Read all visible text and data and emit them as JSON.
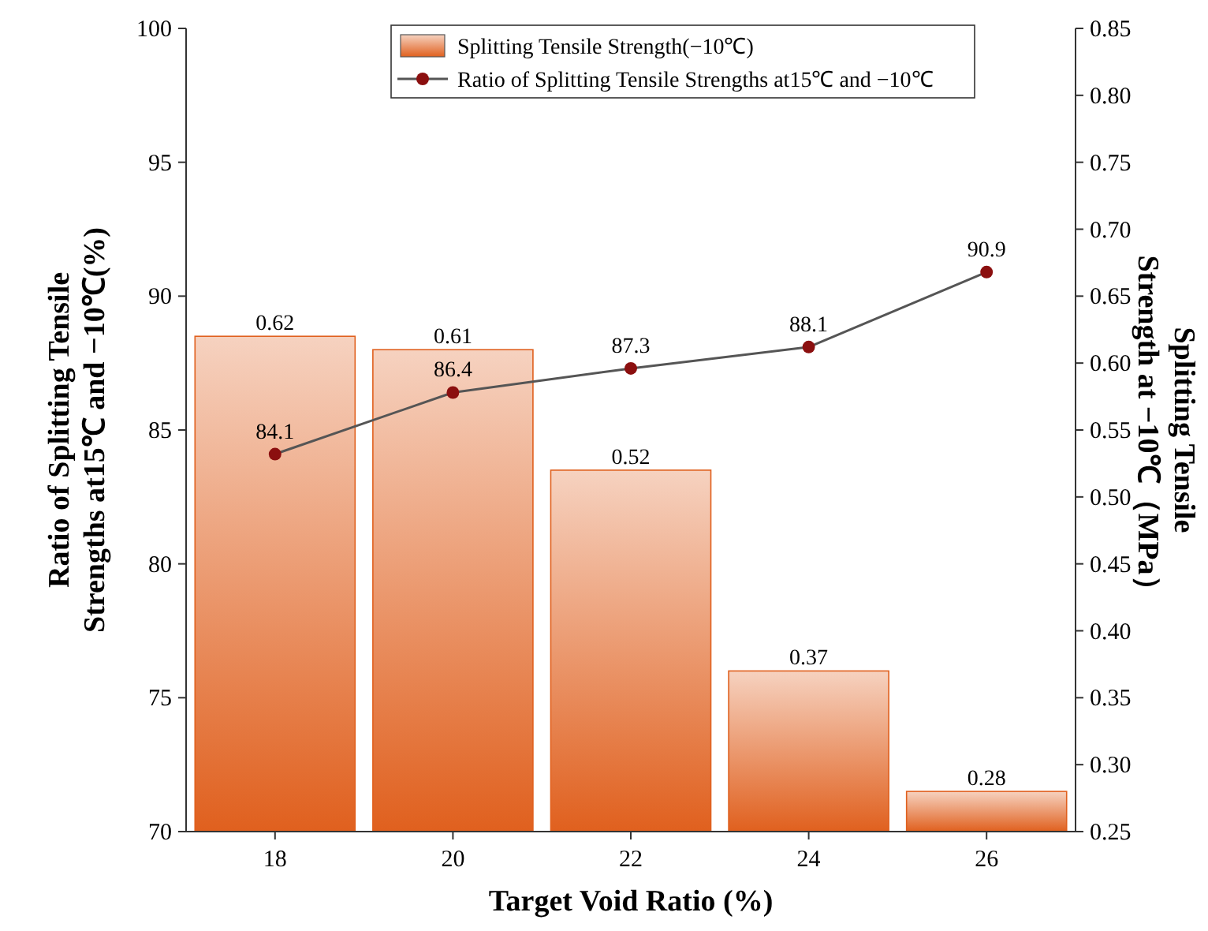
{
  "chart_data": {
    "type": "bar",
    "xlabel": "Target Void Ratio (%)",
    "ylabel": "Ratio of Splitting Tensile\nStrengths at15℃ and  −10℃(%)",
    "y2label": "Splitting Tensile\nStrength at −10℃（MPa）",
    "categories": [
      "18",
      "20",
      "22",
      "24",
      "26"
    ],
    "series": [
      {
        "name": "Splitting Tensile Strength(−10℃)",
        "axis": "y2",
        "color": "#e0601e",
        "values": [
          0.62,
          0.61,
          0.52,
          0.37,
          0.28
        ]
      },
      {
        "name": "Ratio of Splitting Tensile Strengths at15℃ and −10℃",
        "type": "line",
        "axis": "y",
        "color": "#8b0f0f",
        "values": [
          84.1,
          86.4,
          87.3,
          88.1,
          90.9
        ]
      }
    ],
    "ylim": [
      70,
      100
    ],
    "yticks": [
      70,
      75,
      80,
      85,
      90,
      95,
      100
    ],
    "y2lim": [
      0.25,
      0.85
    ],
    "y2ticks": [
      {
        "value": 0.25,
        "label": "0.25"
      },
      {
        "value": 0.3,
        "label": "0.30"
      },
      {
        "value": 0.35,
        "label": "0.35"
      },
      {
        "value": 0.4,
        "label": "0.40"
      },
      {
        "value": 0.45,
        "label": "0.45"
      },
      {
        "value": 0.5,
        "label": "0.50"
      },
      {
        "value": 0.55,
        "label": "0.55"
      },
      {
        "value": 0.6,
        "label": "0.60"
      },
      {
        "value": 0.65,
        "label": "0.65"
      },
      {
        "value": 0.7,
        "label": "0.70"
      },
      {
        "value": 0.75,
        "label": "0.75"
      },
      {
        "value": 0.8,
        "label": "0.80"
      },
      {
        "value": 0.85,
        "label": "0.85"
      }
    ],
    "data_labels": true,
    "legend": "top",
    "marker": "circle",
    "line_style": "solid",
    "grid": false
  }
}
